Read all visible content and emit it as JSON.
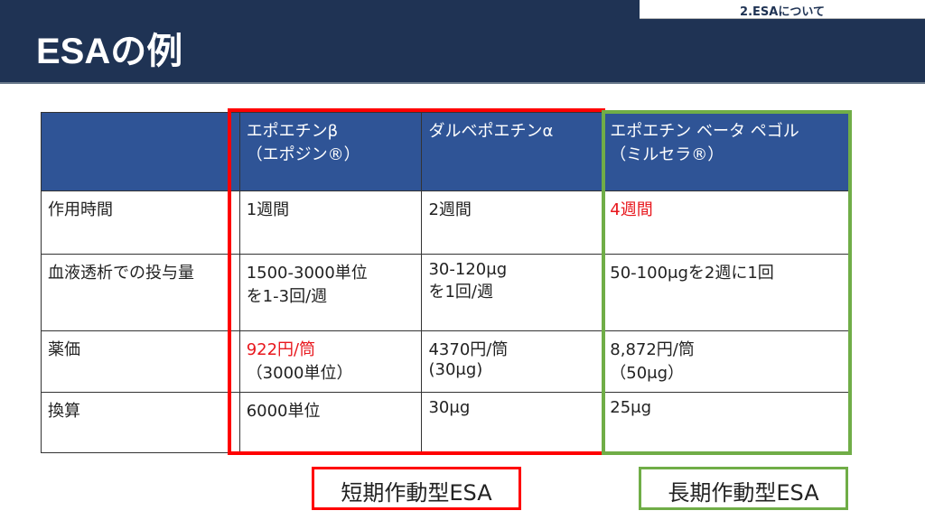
{
  "header": {
    "title": "ESAの例",
    "section_tab": "2.ESAについて"
  },
  "table": {
    "headers": [
      "",
      "エポエチンβ",
      "（エポジン®）",
      "ダルベポエチンα",
      "エポエチン ベータ ペゴル",
      "（ミルセラ®）"
    ],
    "rows": [
      {
        "label": "作用時間",
        "c1": "1週間",
        "c2": "2週間",
        "c3": "4週間"
      },
      {
        "label": "血液透析での投与量",
        "c1a": "1500-3000単位",
        "c1b": "を1-3回/週",
        "c2a": "30-120μg",
        "c2b": "を1回/週",
        "c3": "50-100μgを2週に1回"
      },
      {
        "label": "薬価",
        "c1a": "922円/筒",
        "c1b": "（3000単位）",
        "c2a": "4370円/筒",
        "c2b": "(30μg)",
        "c3a": "8,872円/筒",
        "c3b": "（50μg）"
      },
      {
        "label": "換算",
        "c1": "6000単位",
        "c2": "30μg",
        "c3": "25μg"
      }
    ]
  },
  "groups": {
    "short": "短期作動型ESA",
    "long": "長期作動型ESA"
  },
  "colors": {
    "header_bg": "#1f3354",
    "table_header": "#2f5496",
    "short_acting": "#ff0000",
    "long_acting": "#70ad47",
    "highlight_text": "#e8171d"
  }
}
